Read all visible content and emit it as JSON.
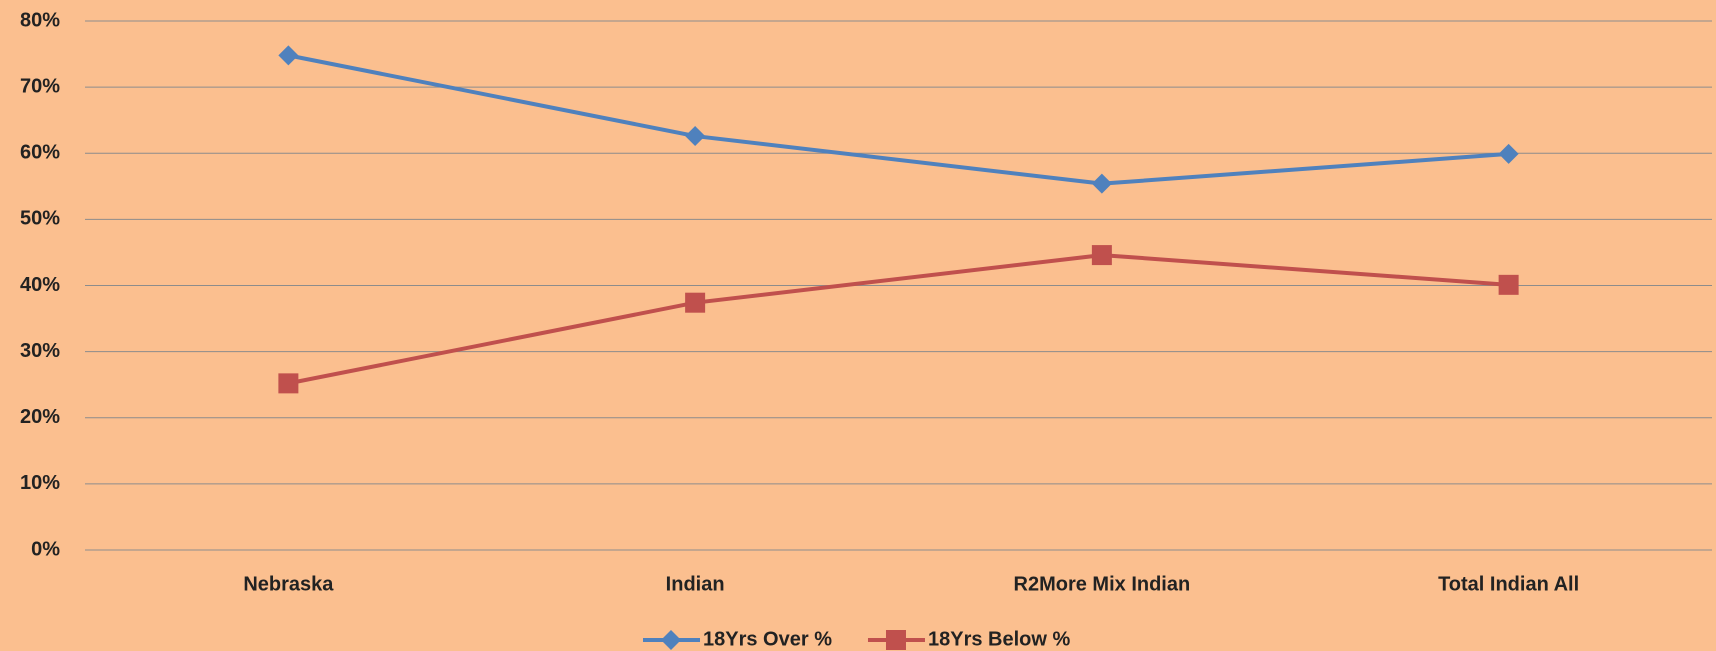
{
  "chart_data": {
    "type": "line",
    "categories": [
      "Nebraska",
      "Indian",
      "R2More Mix Indian",
      "Total Indian All"
    ],
    "series": [
      {
        "name": "18Yrs Over %",
        "color": "#4f81bd",
        "marker": "diamond",
        "values": [
          74.8,
          62.6,
          55.4,
          59.9
        ]
      },
      {
        "name": "18Yrs Below %",
        "color": "#c0504d",
        "marker": "square",
        "values": [
          25.2,
          37.4,
          44.6,
          40.1
        ]
      }
    ],
    "ylim": [
      0,
      80
    ],
    "yticks": [
      {
        "value": 0,
        "label": "0%"
      },
      {
        "value": 10,
        "label": "10%"
      },
      {
        "value": 20,
        "label": "20%"
      },
      {
        "value": 30,
        "label": "30%"
      },
      {
        "value": 40,
        "label": "40%"
      },
      {
        "value": 50,
        "label": "50%"
      },
      {
        "value": 60,
        "label": "60%"
      },
      {
        "value": 70,
        "label": "70%"
      },
      {
        "value": 80,
        "label": "80%"
      }
    ],
    "grid": true,
    "legend": "bottom"
  }
}
